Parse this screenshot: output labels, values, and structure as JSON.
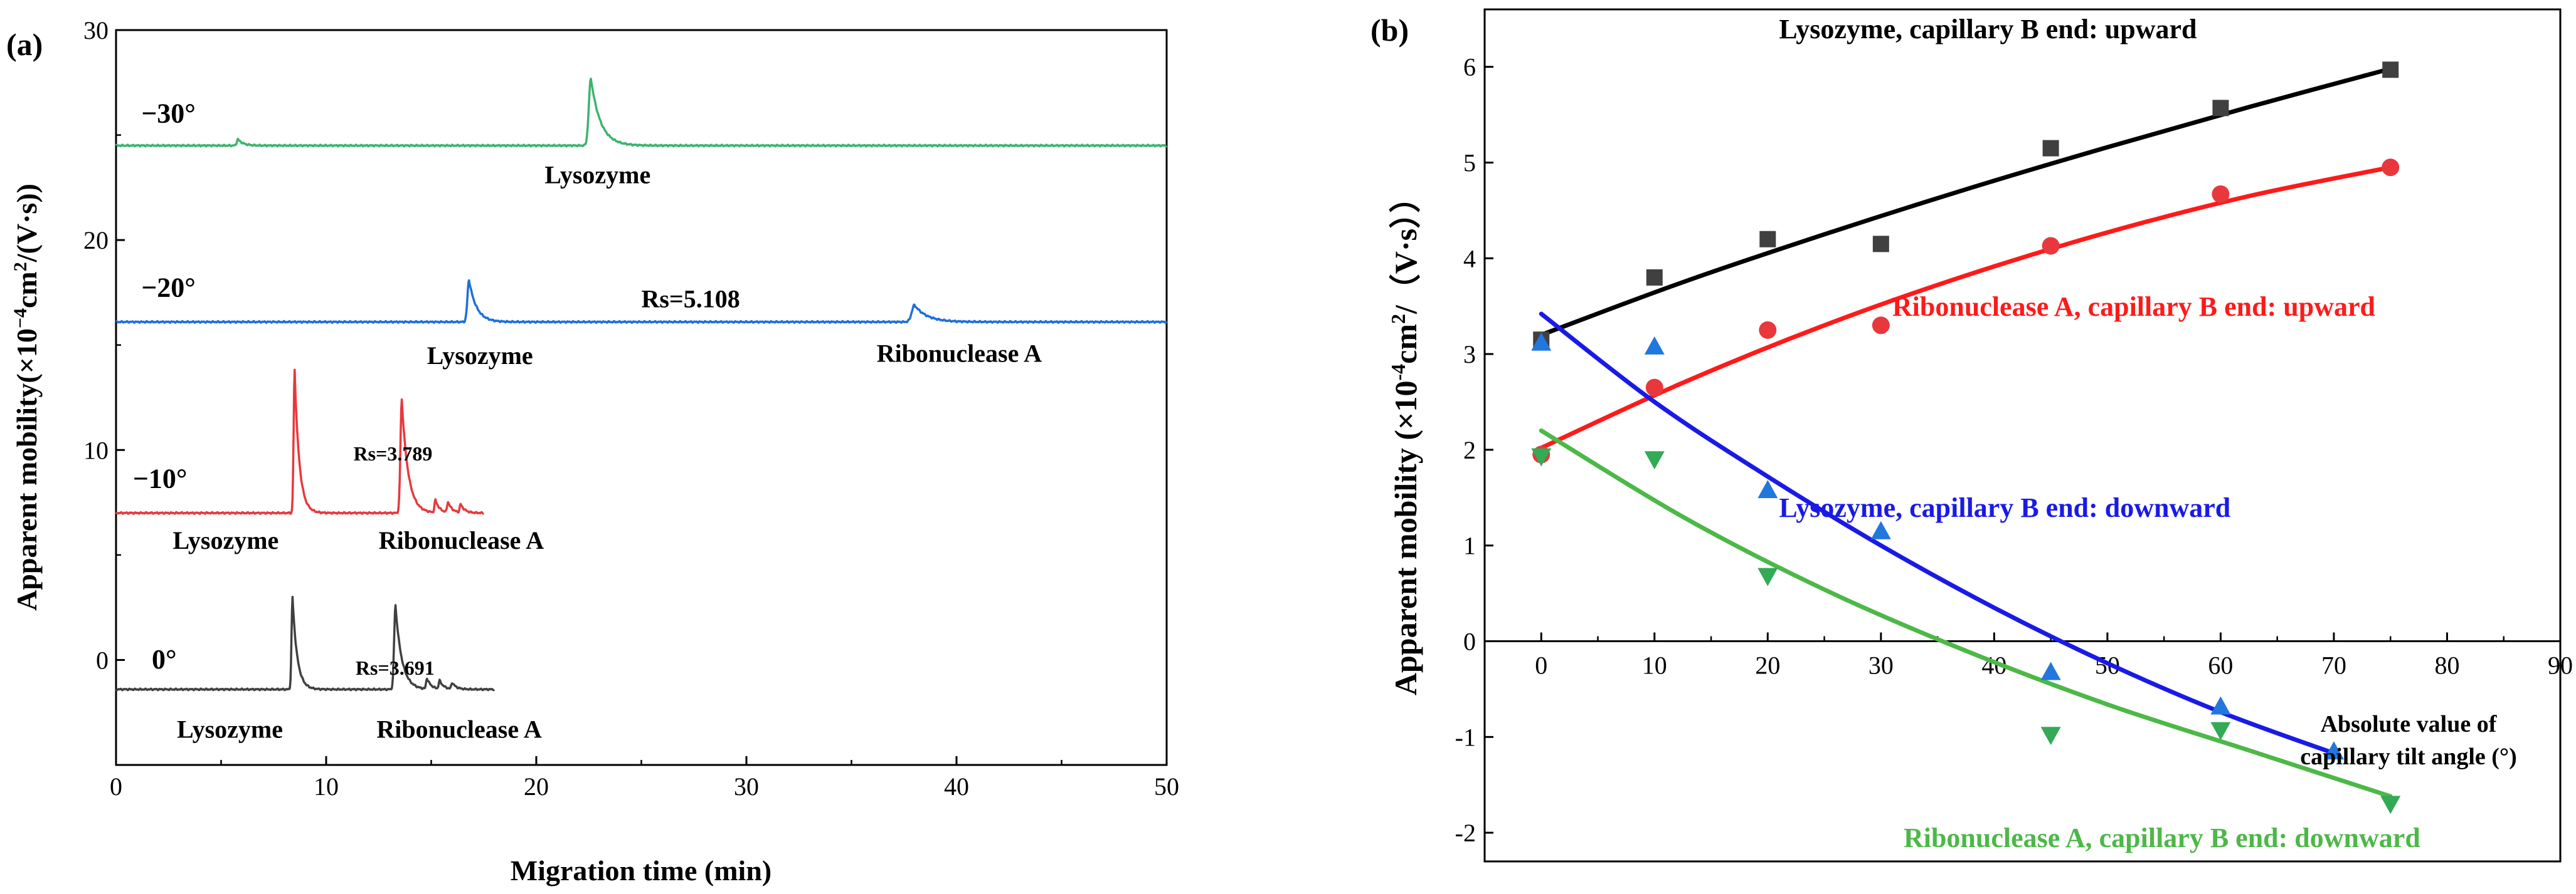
{
  "colors": {
    "black": "#000000",
    "green": "#3CB46E",
    "blue": "#1E6FD9",
    "red": "#E8383D",
    "gray": "#404040",
    "fit_black": "#000000",
    "fit_red": "#FF1A1A",
    "fit_blue": "#1A1AE6",
    "fit_green": "#4DB848",
    "pt_square": "#404040",
    "pt_circle": "#E8383D",
    "pt_up": "#2277DD",
    "pt_down": "#33AA55"
  },
  "chart_data": [
    {
      "panel": "(a)",
      "type": "line",
      "xlabel": "Migration time (min)",
      "ylabel_parts": {
        "pre": "Apparent mobility(×10",
        "sup1": "−4",
        "mid": "cm",
        "sup2": "2",
        "post": "/(V·s))"
      },
      "xlim": [
        0,
        50
      ],
      "ylim": [
        -5,
        30
      ],
      "xticks": [
        0,
        10,
        20,
        30,
        40,
        50
      ],
      "yticks": [
        0,
        10,
        20,
        30
      ],
      "xtick_labels": [
        "0",
        "10",
        "20",
        "30",
        "40",
        "50"
      ],
      "ytick_labels": [
        "0",
        "10",
        "20",
        "30"
      ],
      "series": [
        {
          "name": "−30°",
          "color_key": "green",
          "baseline": 24.5,
          "start": 0,
          "end": 50,
          "peaks": [
            {
              "t": 5.8,
              "h": 0.3,
              "w": 0.25
            },
            {
              "t": 22.6,
              "h": 3.2,
              "w": 0.45
            }
          ]
        },
        {
          "name": "−20°",
          "color_key": "blue",
          "baseline": 16.1,
          "start": 0,
          "end": 50,
          "peaks": [
            {
              "t": 16.8,
              "h": 2.0,
              "w": 0.35
            },
            {
              "t": 38.0,
              "h": 0.8,
              "w": 0.6
            }
          ]
        },
        {
          "name": "−10°",
          "color_key": "red",
          "baseline": 7.0,
          "start": 0,
          "end": 17.5,
          "peaks": [
            {
              "t": 8.5,
              "h": 6.8,
              "w": 0.22
            },
            {
              "t": 13.6,
              "h": 5.4,
              "w": 0.3
            },
            {
              "t": 15.2,
              "h": 0.6,
              "w": 0.2
            },
            {
              "t": 15.8,
              "h": 0.5,
              "w": 0.2
            },
            {
              "t": 16.4,
              "h": 0.4,
              "w": 0.2
            }
          ]
        },
        {
          "name": "0°",
          "color_key": "gray",
          "baseline": -1.4,
          "start": 0,
          "end": 18.0,
          "peaks": [
            {
              "t": 8.4,
              "h": 4.4,
              "w": 0.22
            },
            {
              "t": 13.3,
              "h": 4.0,
              "w": 0.3
            },
            {
              "t": 14.8,
              "h": 0.5,
              "w": 0.2
            },
            {
              "t": 15.4,
              "h": 0.4,
              "w": 0.2
            },
            {
              "t": 16.0,
              "h": 0.3,
              "w": 0.2
            }
          ]
        }
      ],
      "annotations": [
        {
          "key": "angle",
          "text": "−30°",
          "x": 1.2,
          "y": 25.6,
          "size": "l"
        },
        {
          "key": "lyso",
          "text": "Lysozyme",
          "x": 20.4,
          "y": 22.7,
          "size": "m"
        },
        {
          "key": "angle",
          "text": "−20°",
          "x": 1.2,
          "y": 17.3,
          "size": "l"
        },
        {
          "key": "lyso",
          "text": "Lysozyme",
          "x": 14.8,
          "y": 14.1,
          "size": "m"
        },
        {
          "key": "rs",
          "text": "Rs=5.108",
          "x": 25.0,
          "y": 16.8,
          "size": "m"
        },
        {
          "key": "ribo",
          "text": "Ribonuclease A",
          "x": 36.2,
          "y": 14.2,
          "size": "m"
        },
        {
          "key": "angle",
          "text": "−10°",
          "x": 0.8,
          "y": 8.2,
          "size": "l"
        },
        {
          "key": "lyso",
          "text": "Lysozyme",
          "x": 2.7,
          "y": 5.3,
          "size": "m"
        },
        {
          "key": "rs",
          "text": "Rs=3.789",
          "x": 11.3,
          "y": 9.5,
          "size": "s"
        },
        {
          "key": "ribo",
          "text": "Ribonuclease A",
          "x": 12.5,
          "y": 5.3,
          "size": "m"
        },
        {
          "key": "angle",
          "text": "0°",
          "x": 1.7,
          "y": -0.4,
          "size": "l"
        },
        {
          "key": "rs",
          "text": "Rs=3.691",
          "x": 11.4,
          "y": -0.7,
          "size": "s"
        },
        {
          "key": "lyso",
          "text": "Lysozyme",
          "x": 2.9,
          "y": -3.7,
          "size": "m"
        },
        {
          "key": "ribo",
          "text": "Ribonuclease A",
          "x": 12.4,
          "y": -3.7,
          "size": "m"
        }
      ]
    },
    {
      "panel": "(b)",
      "type": "scatter",
      "xlabel_lines": [
        "Absolute value of",
        "capillary tilt angle (°)"
      ],
      "ylabel_parts": {
        "pre": "Apparent mobility (×10",
        "sup1": "-4",
        "mid": "cm",
        "sup2": "2",
        "post": "/（V·s））"
      },
      "xlim": [
        -5,
        90
      ],
      "ylim": [
        -2.3,
        6.6
      ],
      "xticks": [
        0,
        10,
        20,
        30,
        40,
        50,
        60,
        70,
        80,
        90
      ],
      "yticks": [
        -2,
        -1,
        0,
        1,
        2,
        3,
        4,
        5,
        6
      ],
      "xtick_labels": [
        "0",
        "10",
        "20",
        "30",
        "40",
        "50",
        "60",
        "70",
        "80",
        "90"
      ],
      "ytick_labels": [
        "-2",
        "-1",
        "0",
        "1",
        "2",
        "3",
        "4",
        "5",
        "6"
      ],
      "series": [
        {
          "name": "Lysozyme, capillary B end: upward",
          "marker": "square",
          "color_key": "pt_square",
          "fit_color_key": "fit_black",
          "x": [
            0,
            10,
            20,
            30,
            45,
            60,
            75
          ],
          "y": [
            3.15,
            3.8,
            4.2,
            4.15,
            5.15,
            5.57,
            5.97
          ],
          "fit_x": [
            0,
            12.5,
            25,
            37.5,
            50,
            62.5,
            75
          ],
          "fit_y": [
            3.2,
            3.75,
            4.25,
            4.72,
            5.16,
            5.58,
            5.98
          ],
          "label_pos": {
            "x": 21,
            "y": 6.3
          }
        },
        {
          "name": "Ribonuclease A, capillary B end: upward",
          "marker": "circle",
          "color_key": "pt_circle",
          "fit_color_key": "fit_red",
          "x": [
            0,
            10,
            20,
            30,
            45,
            60,
            75
          ],
          "y": [
            1.95,
            2.65,
            3.25,
            3.3,
            4.13,
            4.67,
            4.95
          ],
          "fit_x": [
            0,
            12.5,
            25,
            37.5,
            50,
            62.5,
            75
          ],
          "fit_y": [
            2.02,
            2.7,
            3.3,
            3.82,
            4.27,
            4.65,
            4.95
          ],
          "label_pos": {
            "x": 31,
            "y": 3.4
          }
        },
        {
          "name": "Lysozyme, capillary B end: downward",
          "marker": "triangle-up",
          "color_key": "pt_up",
          "fit_color_key": "fit_blue",
          "x": [
            0,
            10,
            20,
            30,
            45,
            60,
            70
          ],
          "y": [
            3.12,
            3.08,
            1.58,
            1.15,
            -0.32,
            -0.68,
            -1.15
          ],
          "fit_x": [
            0,
            10,
            20,
            30,
            40,
            50,
            60,
            70
          ],
          "fit_y": [
            3.42,
            2.5,
            1.72,
            1.0,
            0.35,
            -0.23,
            -0.74,
            -1.17
          ],
          "label_pos": {
            "x": 21,
            "y": 1.3
          }
        },
        {
          "name": "Ribonuclease A, capillary B end: downward",
          "marker": "triangle-down",
          "color_key": "pt_down",
          "fit_color_key": "fit_green",
          "x": [
            0,
            10,
            20,
            45,
            60,
            75
          ],
          "y": [
            1.93,
            1.9,
            0.68,
            -0.98,
            -0.93,
            -1.7
          ],
          "fit_x": [
            0,
            12.5,
            25,
            37.5,
            50,
            62.5,
            75
          ],
          "fit_y": [
            2.2,
            1.3,
            0.54,
            -0.1,
            -0.66,
            -1.14,
            -1.62
          ],
          "label_pos": {
            "x": 32,
            "y": -2.15
          }
        }
      ]
    }
  ]
}
